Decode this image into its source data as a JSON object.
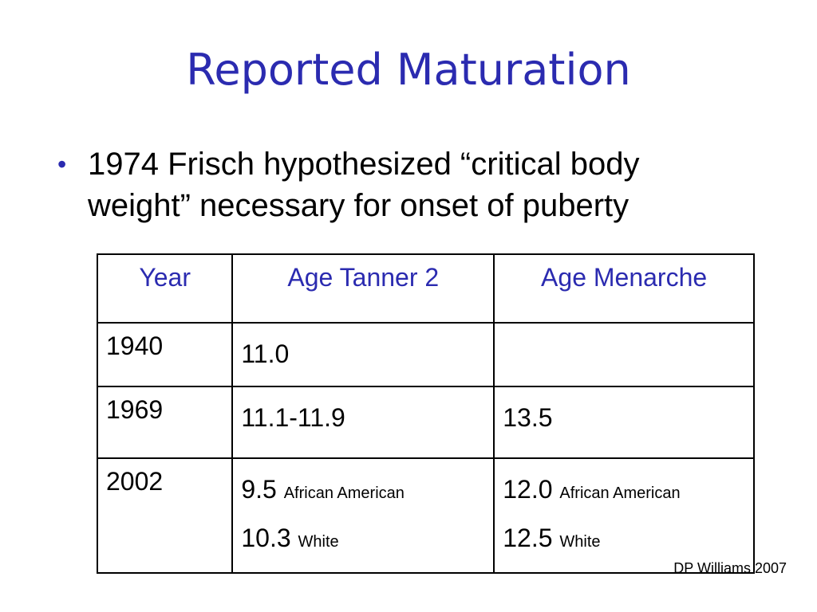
{
  "slide": {
    "title": "Reported Maturation",
    "bullet": "1974 Frisch hypothesized “critical body weight” necessary for onset of puberty",
    "bullet_glyph": "•",
    "accent_color": "#2b2bb0",
    "credit": "DP Williams 2007"
  },
  "table": {
    "headers": [
      "Year",
      "Age Tanner 2",
      "Age Menarche"
    ],
    "rows": [
      {
        "year": "1940",
        "tanner": [
          {
            "value": "11.0",
            "label": ""
          }
        ],
        "menarche": []
      },
      {
        "year": "1969",
        "tanner": [
          {
            "value": "11.1-11.9",
            "label": ""
          }
        ],
        "menarche": [
          {
            "value": "13.5",
            "label": ""
          }
        ]
      },
      {
        "year": "2002",
        "tanner": [
          {
            "value": "9.5",
            "label": "African American"
          },
          {
            "value": "10.3",
            "label": "White"
          }
        ],
        "menarche": [
          {
            "value": "12.0",
            "label": "African American"
          },
          {
            "value": "12.5",
            "label": "White"
          }
        ]
      }
    ]
  }
}
